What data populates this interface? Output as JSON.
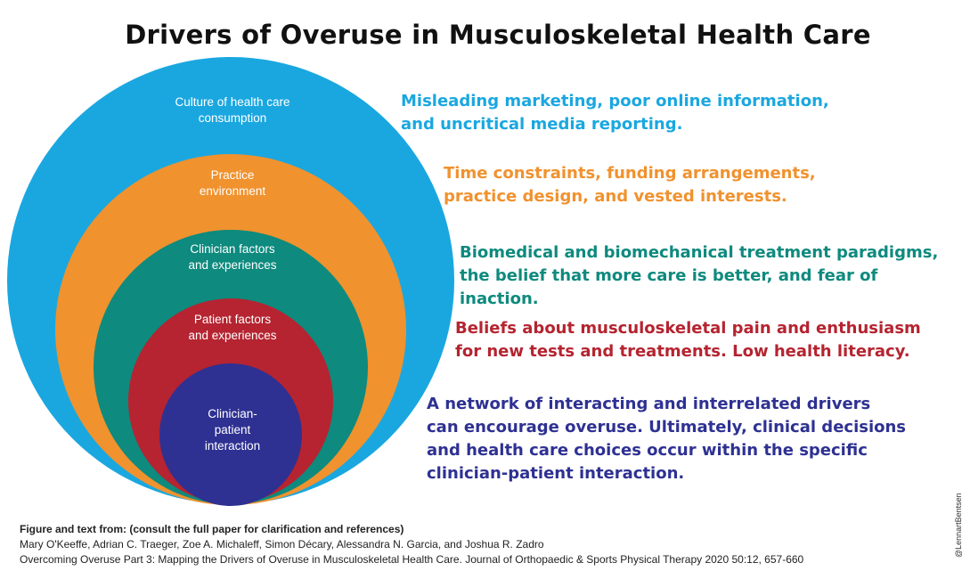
{
  "title": "Drivers of Overuse in Musculoskeletal Health Care",
  "rings": [
    {
      "label": "Culture of health care\nconsumption",
      "color": "#1aa7e0"
    },
    {
      "label": "Practice\nenvironment",
      "color": "#f0922e"
    },
    {
      "label": "Clinician factors\nand experiences",
      "color": "#0e8a7e"
    },
    {
      "label": "Patient factors\nand experiences",
      "color": "#b52430"
    },
    {
      "label": "Clinician-\npatient\ninteraction",
      "color": "#2e3192"
    }
  ],
  "descriptions": [
    {
      "text": "Misleading marketing, poor online information,\nand uncritical media reporting.",
      "color": "#1aa7e0"
    },
    {
      "text": "Time constraints, funding arrangements,\npractice design, and vested interests.",
      "color": "#f0922e"
    },
    {
      "text": "Biomedical and biomechanical treatment paradigms,\nthe belief that more care is better, and fear of inaction.",
      "color": "#0e8a7e"
    },
    {
      "text": "Beliefs about musculoskeletal pain and enthusiasm\nfor new tests and treatments. Low health literacy.",
      "color": "#b52430"
    },
    {
      "text": "A network of interacting and interrelated drivers\ncan encourage overuse. Ultimately, clinical decisions\nand health care choices occur within the specific\nclinician-patient interaction.",
      "color": "#2e3192"
    }
  ],
  "citation": {
    "heading": "Figure and text from: (consult the full paper for clarification and references)",
    "authors": "Mary O'Keeffe, Adrian C. Traeger, Zoe A. Michaleff, Simon Décary, Alessandra N. Garcia, and Joshua R. Zadro",
    "reference": "Overcoming Overuse Part 3: Mapping the Drivers of Overuse in Musculoskeletal Health Care. Journal of Orthopaedic & Sports Physical Therapy 2020 50:12, 657-660"
  },
  "credit": "@LennartBentsen"
}
